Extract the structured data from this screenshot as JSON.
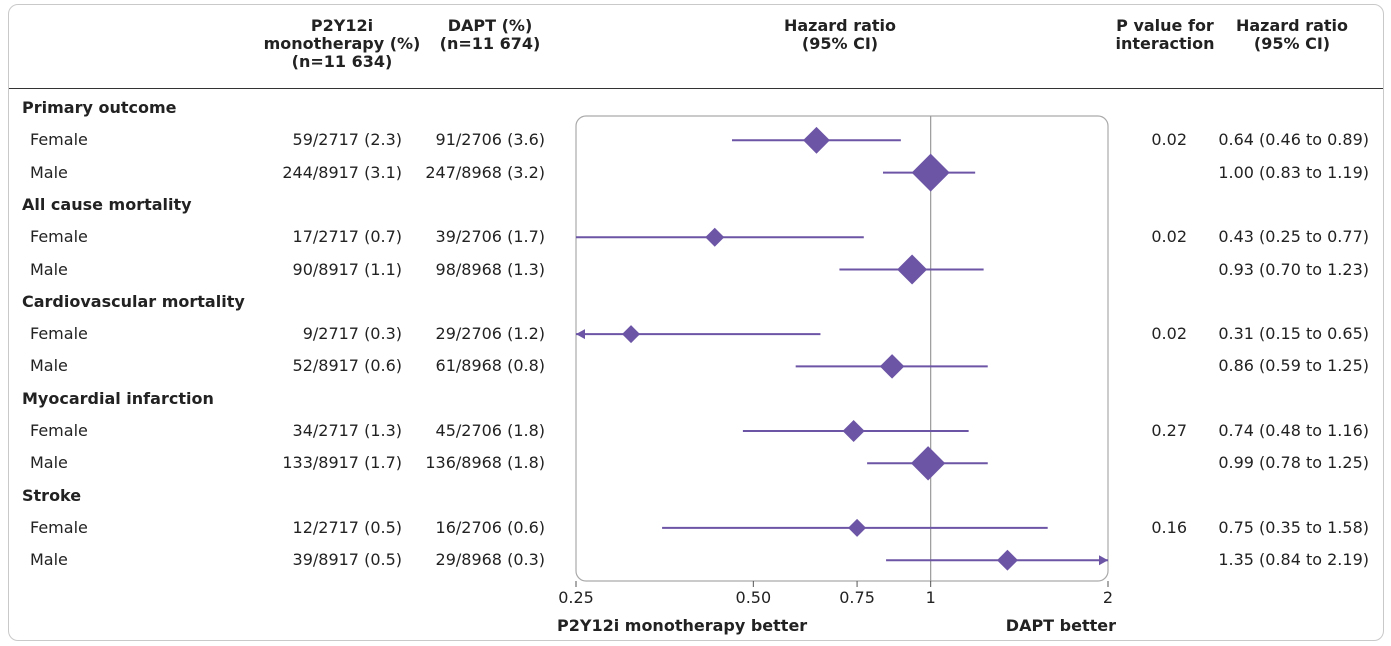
{
  "headers": {
    "p2y12": "P2Y12i\nmonotherapy (%)\n(n=11 634)",
    "dapt": "DAPT (%)\n(n=11 674)",
    "hr_plot": "Hazard ratio\n(95% CI)",
    "pint": "P value for\ninteraction",
    "hr_text": "Hazard ratio\n(95% CI)"
  },
  "footer": {
    "left": "P2Y12i  monotherapy better",
    "right": "DAPT better"
  },
  "chart_data": {
    "type": "forest",
    "x_scale": "log",
    "xlim": [
      0.25,
      2
    ],
    "xticks": [
      0.25,
      0.5,
      0.75,
      1,
      2
    ],
    "xtick_labels": [
      "0.25",
      "0.50",
      "0.75",
      "1",
      "2"
    ],
    "reference_line": 1,
    "marker_color": "#6d55a6",
    "groups": [
      {
        "label": "Primary outcome",
        "rows": [
          {
            "label": "Female",
            "p2y12": "59/2717 (2.3)",
            "dapt": "91/2706 (3.6)",
            "hr": 0.64,
            "lo": 0.46,
            "hi": 0.89,
            "p": "0.02",
            "hr_text": "0.64 (0.46 to 0.89)"
          },
          {
            "label": "Male",
            "p2y12": "244/8917 (3.1)",
            "dapt": "247/8968 (3.2)",
            "hr": 1.0,
            "lo": 0.83,
            "hi": 1.19,
            "p": "",
            "hr_text": "1.00 (0.83 to 1.19)"
          }
        ]
      },
      {
        "label": "All cause mortality",
        "rows": [
          {
            "label": "Female",
            "p2y12": "17/2717 (0.7)",
            "dapt": "39/2706 (1.7)",
            "hr": 0.43,
            "lo": 0.25,
            "hi": 0.77,
            "p": "0.02",
            "hr_text": "0.43 (0.25 to 0.77)"
          },
          {
            "label": "Male",
            "p2y12": "90/8917 (1.1)",
            "dapt": "98/8968 (1.3)",
            "hr": 0.93,
            "lo": 0.7,
            "hi": 1.23,
            "p": "",
            "hr_text": "0.93 (0.70 to 1.23)"
          }
        ]
      },
      {
        "label": "Cardiovascular mortality",
        "rows": [
          {
            "label": "Female",
            "p2y12": "9/2717 (0.3)",
            "dapt": "29/2706 (1.2)",
            "hr": 0.31,
            "lo": 0.15,
            "hi": 0.65,
            "p": "0.02",
            "hr_text": "0.31 (0.15 to 0.65)"
          },
          {
            "label": "Male",
            "p2y12": "52/8917 (0.6)",
            "dapt": "61/8968 (0.8)",
            "hr": 0.86,
            "lo": 0.59,
            "hi": 1.25,
            "p": "",
            "hr_text": "0.86 (0.59 to 1.25)"
          }
        ]
      },
      {
        "label": "Myocardial infarction",
        "rows": [
          {
            "label": "Female",
            "p2y12": "34/2717 (1.3)",
            "dapt": "45/2706 (1.8)",
            "hr": 0.74,
            "lo": 0.48,
            "hi": 1.16,
            "p": "0.27",
            "hr_text": "0.74 (0.48 to 1.16)"
          },
          {
            "label": "Male",
            "p2y12": "133/8917 (1.7)",
            "dapt": "136/8968 (1.8)",
            "hr": 0.99,
            "lo": 0.78,
            "hi": 1.25,
            "p": "",
            "hr_text": "0.99 (0.78 to 1.25)"
          }
        ]
      },
      {
        "label": "Stroke",
        "rows": [
          {
            "label": "Female",
            "p2y12": "12/2717 (0.5)",
            "dapt": "16/2706 (0.6)",
            "hr": 0.75,
            "lo": 0.35,
            "hi": 1.58,
            "p": "0.16",
            "hr_text": "0.75 (0.35 to 1.58)"
          },
          {
            "label": "Male",
            "p2y12": "39/8917 (0.5)",
            "dapt": "29/8968 (0.3)",
            "hr": 1.35,
            "lo": 0.84,
            "hi": 2.19,
            "p": "",
            "hr_text": "1.35 (0.84 to 2.19)"
          }
        ]
      }
    ]
  }
}
